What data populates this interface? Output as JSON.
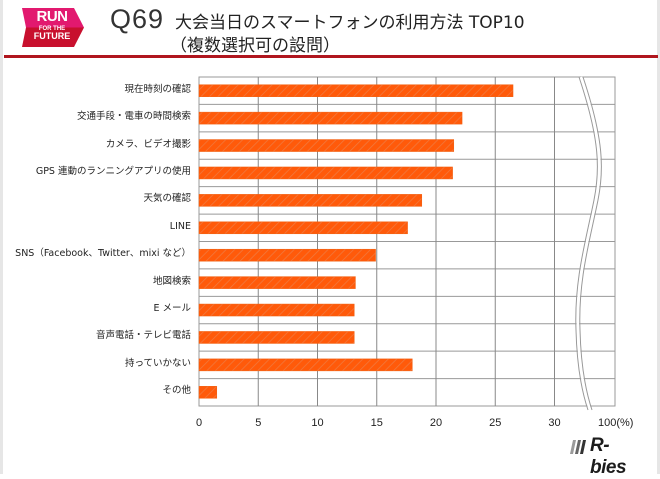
{
  "header": {
    "logo": {
      "line1": "RUN",
      "line2": "FOR THE",
      "line3": "FUTURE",
      "colors": {
        "top": "#e2196f",
        "bottom": "#c8102e"
      }
    },
    "question_number": "Q69",
    "title_line1": "大会当日のスマートフォンの利用方法 TOP10",
    "title_line2": "（複数選択可の設問）",
    "rule_color": "#b0161e"
  },
  "footer": {
    "brand": "R-bies"
  },
  "chart_data": {
    "type": "bar",
    "orientation": "horizontal",
    "title": "大会当日のスマートフォンの利用方法 TOP10（複数選択可の設問）",
    "xlabel": "(%)",
    "ylabel": "",
    "categories": [
      "現在時刻の確認",
      "交通手段・電車の時間検索",
      "カメラ、ビデオ撮影",
      "GPS 連動のランニングアプリの使用",
      "天気の確認",
      "LINE",
      "SNS（Facebook、Twitter、mixi など）",
      "地図検索",
      "E メール",
      "音声電話・テレビ電話",
      "持っていかない",
      "その他"
    ],
    "values": [
      26.5,
      22.2,
      21.5,
      21.4,
      18.8,
      17.6,
      14.9,
      13.2,
      13.1,
      13.1,
      18.0,
      1.5
    ],
    "xlim": [
      0,
      100
    ],
    "axis_break": "between 30 and 100",
    "x_ticks": [
      "0",
      "5",
      "10",
      "15",
      "20",
      "25",
      "30",
      "100(%)"
    ],
    "grid": true,
    "bar_color": "#ff5a0a",
    "legend": null
  }
}
